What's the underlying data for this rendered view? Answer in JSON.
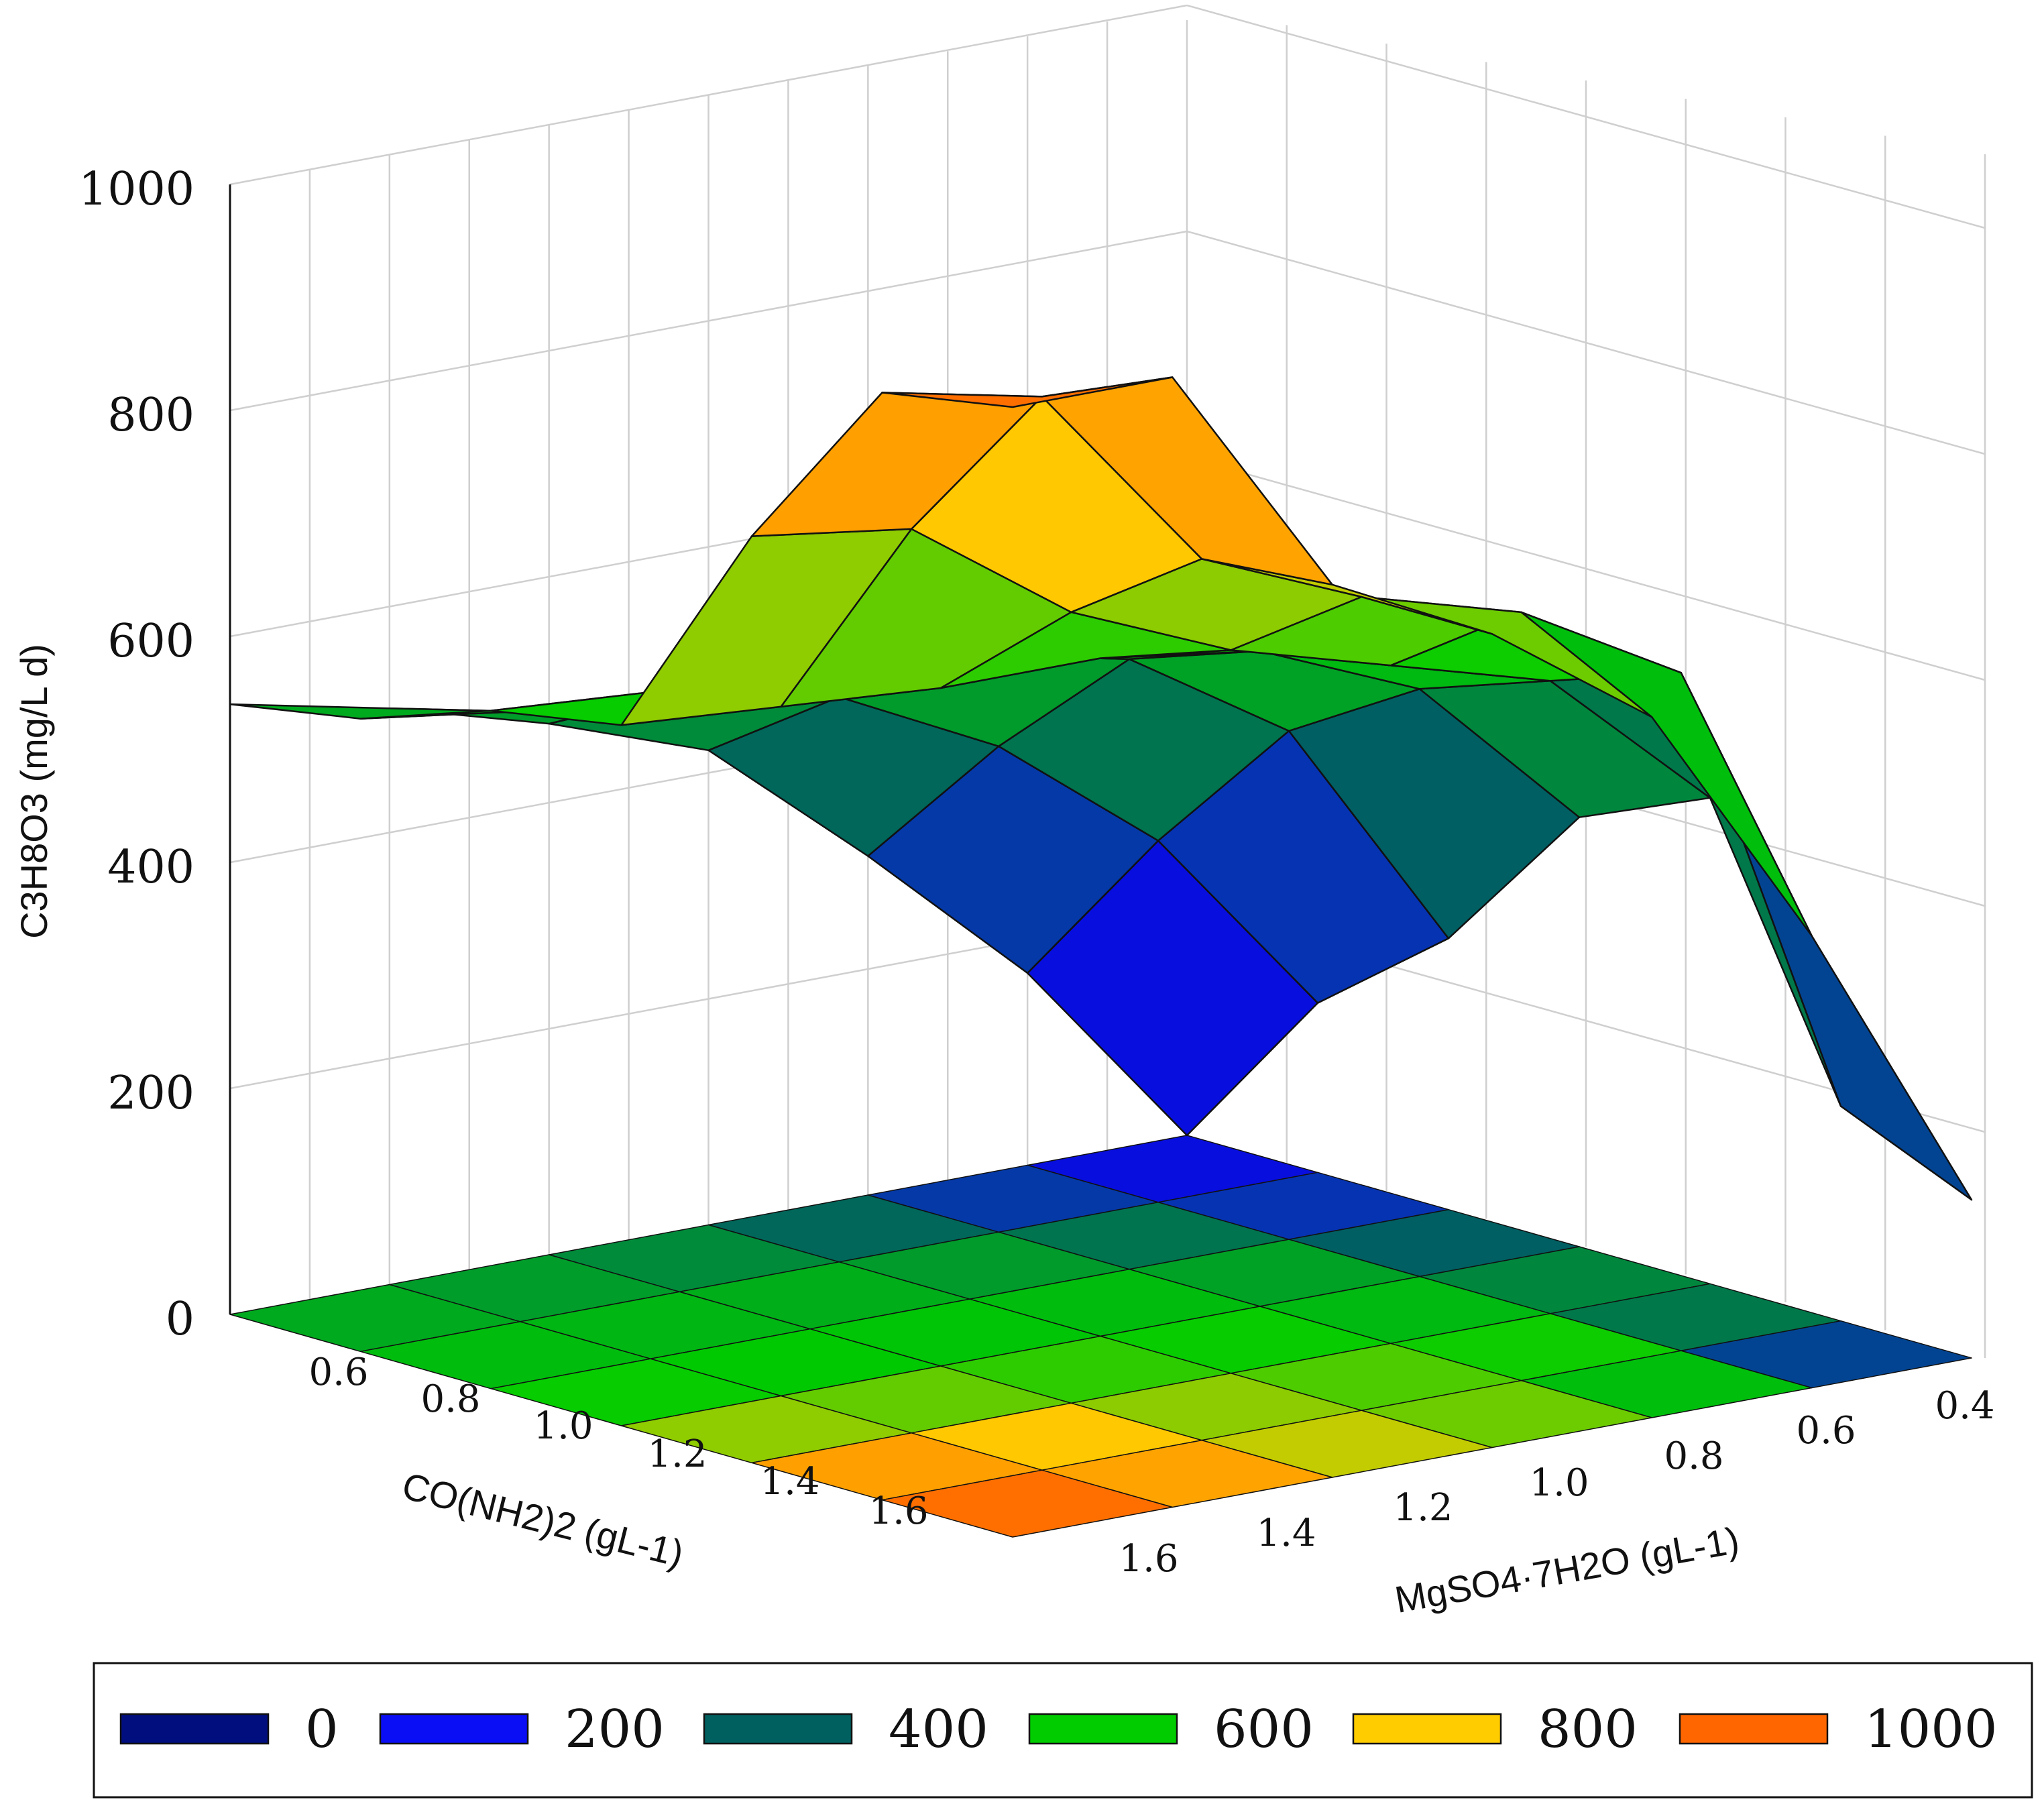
{
  "chart_data": {
    "type": "surface3d",
    "title": "",
    "zlabel": "C3H8O3 (mg/L d)",
    "xlabel": "CO(NH2)2 (gL-1)",
    "ylabel": "MgSO4·7H2O (gL-1)",
    "zlim": [
      0,
      1000
    ],
    "z_ticks": [
      "0",
      "200",
      "400",
      "600",
      "800",
      "1000"
    ],
    "x_ticks": [
      "0.6",
      "0.8",
      "1.0",
      "1.2",
      "1.4",
      "1.6"
    ],
    "y_ticks": [
      "0.4",
      "0.6",
      "0.8",
      "1.0",
      "1.2",
      "1.4",
      "1.6"
    ],
    "x_values": [
      0.4,
      0.6,
      0.8,
      1.0,
      1.2,
      1.4,
      1.6
    ],
    "y_values": [
      0.4,
      0.6,
      0.8,
      1.0,
      1.2,
      1.4,
      1.6
    ],
    "z": [
      [
        0,
        170,
        300,
        420,
        470,
        510,
        540
      ],
      [
        150,
        320,
        430,
        500,
        530,
        540,
        560
      ],
      [
        240,
        450,
        540,
        570,
        580,
        590,
        600
      ],
      [
        380,
        520,
        580,
        600,
        600,
        610,
        620
      ],
      [
        430,
        560,
        600,
        640,
        700,
        800,
        820
      ],
      [
        190,
        600,
        680,
        720,
        780,
        950,
        980
      ],
      [
        140,
        400,
        620,
        720,
        790,
        1000,
        1000
      ]
    ],
    "colorscale": [
      {
        "value": 0,
        "color": "#000e7e"
      },
      {
        "value": 200,
        "color": "#0a0ef5"
      },
      {
        "value": 400,
        "color": "#006060"
      },
      {
        "value": 600,
        "color": "#00cc00"
      },
      {
        "value": 800,
        "color": "#ffcc00"
      },
      {
        "value": 1000,
        "color": "#ff6600"
      }
    ],
    "legend": {
      "placement": "bottom",
      "entries": [
        {
          "label": "0",
          "color": "#000e7e"
        },
        {
          "label": "200",
          "color": "#0a0ef5"
        },
        {
          "label": "400",
          "color": "#006060"
        },
        {
          "label": "600",
          "color": "#00cc00"
        },
        {
          "label": "800",
          "color": "#ffcc00"
        },
        {
          "label": "1000",
          "color": "#ff6600"
        }
      ]
    }
  }
}
